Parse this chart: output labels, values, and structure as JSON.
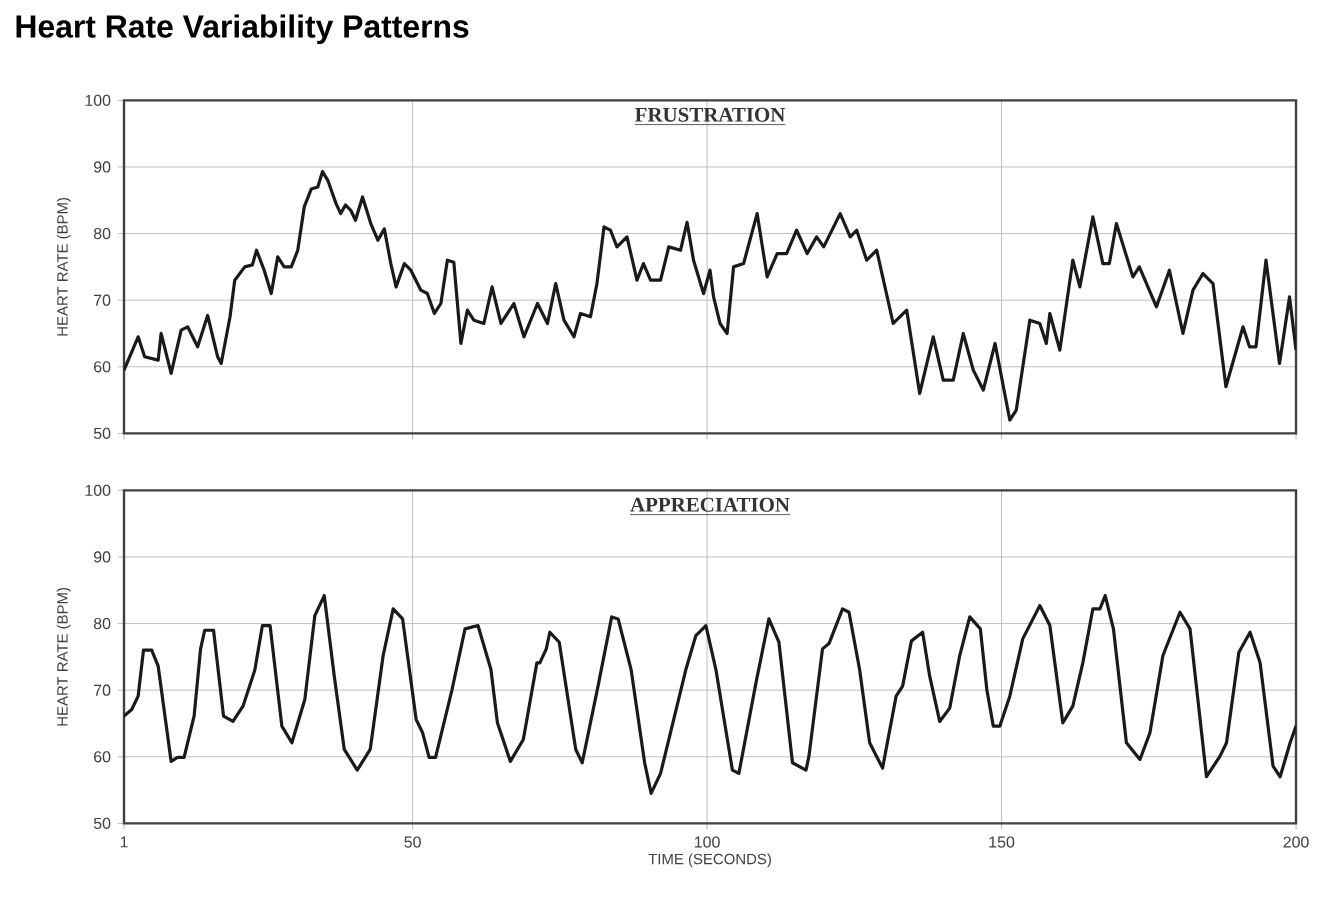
{
  "chart_data": [
    {
      "type": "line",
      "title": "Heart Rate Variability Patterns",
      "subtitle": "FRUSTRATION",
      "ylabel": "HEART RATE (BPM)",
      "color": "#1a1a1a",
      "grid": true,
      "tick_labels": "y",
      "xlim": [
        1,
        200
      ],
      "xticks": [
        1,
        50,
        100,
        150,
        200
      ],
      "ylim": [
        50,
        100
      ],
      "yticks": [
        50,
        60,
        70,
        80,
        90,
        100
      ],
      "x": [
        1,
        3.4,
        4.5,
        6.8,
        7.3,
        9.0,
        10.7,
        11.8,
        13.5,
        15.2,
        16.9,
        17.5,
        19.0,
        19.8,
        21.5,
        22.8,
        23.5,
        24.8,
        26.0,
        27.1,
        28.2,
        29.4,
        30.5,
        31.6,
        32.8,
        33.9,
        34.7,
        35.6,
        37.0,
        37.8,
        38.6,
        39.5,
        40.3,
        41.5,
        42.9,
        44.1,
        45.2,
        46.3,
        47.2,
        48.6,
        49.7,
        51.4,
        52.5,
        53.7,
        54.8,
        55.9,
        57.0,
        58.2,
        59.3,
        60.4,
        62.1,
        63.5,
        65.0,
        67.2,
        68.9,
        71.2,
        72.9,
        74.3,
        75.7,
        77.4,
        78.5,
        80.2,
        81.3,
        82.5,
        83.6,
        84.7,
        86.4,
        88.1,
        89.2,
        90.4,
        92.1,
        93.5,
        95.5,
        96.6,
        97.7,
        99.4,
        100.5,
        101.1,
        102.2,
        103.4,
        104.5,
        106.2,
        108.5,
        110.2,
        111.9,
        113.5,
        115.2,
        117.0,
        118.6,
        119.8,
        122.6,
        124.3,
        125.4,
        127.1,
        128.8,
        131.6,
        133.9,
        136.1,
        138.4,
        140.1,
        141.8,
        143.5,
        145.2,
        146.9,
        148.9,
        151.4,
        152.5,
        154.8,
        156.5,
        157.6,
        158.2,
        159.9,
        162.1,
        163.3,
        165.5,
        167.2,
        168.3,
        169.5,
        172.3,
        173.4,
        176.3,
        178.5,
        180.8,
        182.5,
        184.2,
        185.9,
        188.1,
        191.0,
        192.1,
        193.2,
        194.9,
        197.2,
        198.9,
        200
      ],
      "values": [
        59.5,
        64.5,
        61.5,
        61,
        65,
        59,
        65.5,
        66,
        63,
        67.7,
        61.5,
        60.5,
        67.5,
        73,
        75,
        75.3,
        77.5,
        74.5,
        71,
        76.5,
        75,
        75,
        77.5,
        84,
        86.7,
        87,
        89.3,
        88,
        84.5,
        83,
        84.3,
        83.5,
        82,
        85.5,
        81.5,
        79,
        80.7,
        75.5,
        72,
        75.5,
        74.5,
        71.5,
        71,
        68,
        69.5,
        76,
        75.7,
        63.5,
        68.5,
        67,
        66.5,
        72,
        66.5,
        69.5,
        64.5,
        69.5,
        66.5,
        72.5,
        67,
        64.5,
        68,
        67.5,
        72.5,
        81,
        80.5,
        78,
        79.5,
        73,
        75.5,
        73,
        73,
        78,
        77.5,
        81.7,
        76,
        71,
        74.5,
        70.5,
        66.5,
        65,
        75,
        75.5,
        83,
        73.5,
        77,
        77,
        80.5,
        77,
        79.5,
        78,
        83,
        79.5,
        80.5,
        76,
        77.5,
        66.5,
        68.5,
        56,
        64.5,
        58,
        58,
        65,
        59.5,
        56.5,
        63.5,
        52,
        53.5,
        67,
        66.5,
        63.5,
        68,
        62.5,
        76,
        72,
        82.5,
        75.5,
        75.5,
        81.5,
        73.5,
        75,
        69,
        74.5,
        65,
        71.5,
        74,
        72.5,
        57,
        66,
        63,
        63,
        76,
        60.5,
        70.5,
        62.5
      ]
    },
    {
      "type": "line",
      "subtitle": "APPRECIATION",
      "xlabel": "TIME (SECONDS)",
      "ylabel": "HEART RATE (BPM)",
      "color": "#1a1a1a",
      "grid": true,
      "xlim": [
        1,
        200
      ],
      "xticks": [
        1,
        50,
        100,
        150,
        200
      ],
      "ylim": [
        50,
        100
      ],
      "yticks": [
        50,
        60,
        70,
        80,
        90,
        100
      ],
      "x": [
        1,
        2.3,
        3.4,
        4.3,
        5.7,
        6.8,
        9.0,
        10.1,
        11.2,
        12.9,
        14.0,
        14.7,
        16.2,
        17.9,
        19.5,
        21.2,
        23.2,
        24.5,
        25.8,
        27.8,
        29.5,
        31.7,
        33.4,
        35.0,
        36.7,
        38.4,
        40.6,
        42.8,
        45.0,
        46.7,
        48.3,
        50.6,
        51.7,
        52.8,
        53.9,
        56.7,
        58.9,
        61.1,
        63.3,
        64.4,
        66.6,
        68.8,
        71.1,
        71.6,
        72.7,
        73.3,
        74.9,
        77.7,
        78.8,
        81.6,
        83.8,
        84.9,
        87.1,
        89.4,
        90.5,
        92.1,
        96.4,
        98.1,
        99.8,
        101.5,
        104.3,
        105.4,
        108.3,
        110.5,
        112.2,
        114.5,
        116.8,
        117.3,
        119.6,
        120.7,
        123.0,
        124.1,
        125.9,
        127.6,
        129.8,
        132.1,
        133.2,
        134.7,
        136.6,
        137.8,
        139.5,
        141.2,
        142.9,
        144.6,
        146.4,
        147.5,
        148.6,
        149.7,
        151.4,
        153.6,
        156.5,
        158.2,
        160.4,
        162.1,
        163.8,
        165.5,
        166.7,
        167.6,
        169.0,
        171.2,
        173.5,
        175.2,
        177.4,
        180.3,
        182.0,
        184.8,
        187.1,
        188.2,
        190.3,
        192.2,
        193.9,
        196.1,
        197.3,
        199.0,
        200
      ],
      "values": [
        66.1,
        67.1,
        69.1,
        76,
        76,
        73.6,
        59.3,
        59.9,
        59.9,
        66.1,
        76.2,
        79,
        79,
        66.1,
        65.3,
        67.6,
        73,
        79.7,
        79.7,
        64.6,
        62.1,
        68.6,
        81.2,
        84.2,
        72.1,
        61.1,
        58,
        61.1,
        75.2,
        82.2,
        80.7,
        65.6,
        63.6,
        59.9,
        59.9,
        70.1,
        79.2,
        79.7,
        73.1,
        65.1,
        59.3,
        62.6,
        74.1,
        74.1,
        76.2,
        78.7,
        77.2,
        61.1,
        59.1,
        71.1,
        81,
        80.7,
        73.1,
        59.1,
        54.5,
        57.5,
        73.1,
        78.2,
        79.7,
        73.1,
        58,
        57.5,
        71.1,
        80.7,
        77.2,
        59.1,
        58,
        60.1,
        76.2,
        77,
        82.2,
        81.7,
        73.1,
        62.1,
        58.3,
        69.1,
        70.6,
        77.4,
        78.7,
        72.1,
        65.3,
        67.3,
        75.2,
        81,
        79.2,
        70.1,
        64.6,
        64.6,
        69.1,
        77.7,
        82.7,
        79.7,
        65.1,
        67.6,
        74.1,
        82.2,
        82.2,
        84.2,
        79.2,
        62.1,
        59.6,
        63.6,
        75.2,
        81.7,
        79.2,
        57,
        60.1,
        62.1,
        75.7,
        78.7,
        74.1,
        58.6,
        57,
        62.1,
        64.6
      ]
    }
  ]
}
